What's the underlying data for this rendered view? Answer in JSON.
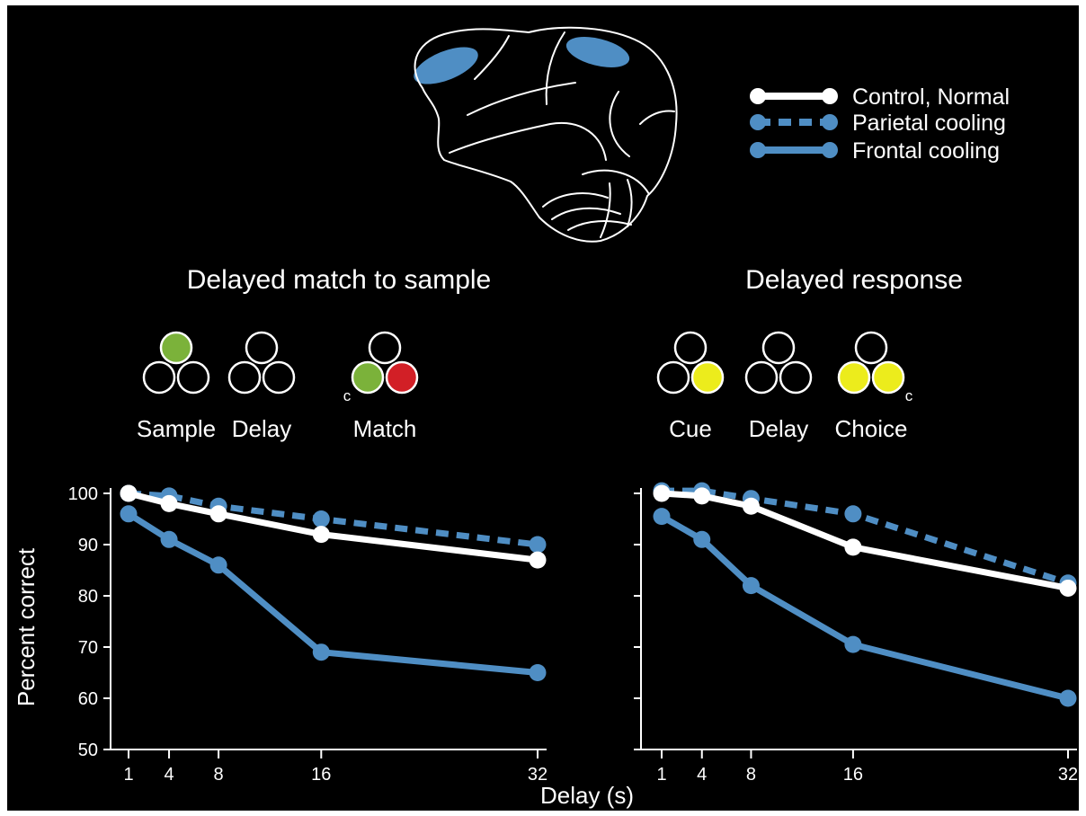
{
  "legend": {
    "items": [
      {
        "label": "Control, Normal",
        "style": "solid",
        "color": "#ffffff"
      },
      {
        "label": "Parietal cooling",
        "style": "dashed",
        "color": "#4f8ec4"
      },
      {
        "label": "Frontal cooling",
        "style": "solid",
        "color": "#4f8ec4"
      }
    ]
  },
  "brain": {
    "icon": "monkey-brain-outline-icon",
    "highlight_color": "#4f8ec4"
  },
  "colors": {
    "background": "#000000",
    "control": "#ffffff",
    "cooling": "#4f8ec4",
    "green_stimulus": "#7bb23a",
    "red_stimulus": "#d21f26",
    "yellow_stimulus": "#ecec1c"
  },
  "axes": {
    "ylabel": "Percent correct",
    "xlabel": "Delay (s)"
  },
  "panels": [
    {
      "title": "Delayed match to sample",
      "stages": [
        {
          "label": "Sample",
          "top": "green",
          "left": "empty",
          "right": "empty",
          "marker": "",
          "marker_side": ""
        },
        {
          "label": "Delay",
          "top": "empty",
          "left": "empty",
          "right": "empty",
          "marker": "",
          "marker_side": ""
        },
        {
          "label": "Match",
          "top": "empty",
          "left": "green",
          "right": "red",
          "marker": "c",
          "marker_side": "left"
        }
      ]
    },
    {
      "title": "Delayed response",
      "stages": [
        {
          "label": "Cue",
          "top": "empty",
          "left": "empty",
          "right": "yellow",
          "marker": "",
          "marker_side": ""
        },
        {
          "label": "Delay",
          "top": "empty",
          "left": "empty",
          "right": "empty",
          "marker": "",
          "marker_side": ""
        },
        {
          "label": "Choice",
          "top": "empty",
          "left": "yellow",
          "right": "yellow",
          "marker": "c",
          "marker_side": "right"
        }
      ]
    }
  ],
  "chart_data": [
    {
      "type": "line",
      "title": "Delayed match to sample",
      "xlabel": "Delay (s)",
      "ylabel": "Percent correct",
      "ylim": [
        50,
        100
      ],
      "yticks": [
        50,
        60,
        70,
        80,
        90,
        100
      ],
      "xticks": [
        1,
        4,
        8,
        16,
        32
      ],
      "x": [
        1,
        4,
        8,
        16,
        32
      ],
      "series": [
        {
          "name": "Parietal cooling",
          "style": "dashed",
          "color": "#4f8ec4",
          "values": [
            100,
            99.5,
            97.5,
            95,
            90
          ]
        },
        {
          "name": "Frontal cooling",
          "style": "solid",
          "color": "#4f8ec4",
          "values": [
            96,
            91,
            86,
            69,
            65
          ]
        },
        {
          "name": "Control, Normal",
          "style": "solid",
          "color": "#ffffff",
          "values": [
            100,
            98,
            96,
            92,
            87
          ]
        }
      ]
    },
    {
      "type": "line",
      "title": "Delayed response",
      "xlabel": "Delay (s)",
      "ylabel": "Percent correct",
      "ylim": [
        50,
        100
      ],
      "xticks": [
        1,
        4,
        8,
        16,
        32
      ],
      "x": [
        1,
        4,
        8,
        16,
        32
      ],
      "series": [
        {
          "name": "Parietal cooling",
          "style": "dashed",
          "color": "#4f8ec4",
          "values": [
            100.5,
            100.5,
            99,
            96,
            82.5
          ]
        },
        {
          "name": "Frontal cooling",
          "style": "solid",
          "color": "#4f8ec4",
          "values": [
            95.5,
            91,
            82,
            70.5,
            60
          ]
        },
        {
          "name": "Control, Normal",
          "style": "solid",
          "color": "#ffffff",
          "values": [
            100,
            99.5,
            97.5,
            89.5,
            81.5
          ]
        }
      ]
    }
  ]
}
